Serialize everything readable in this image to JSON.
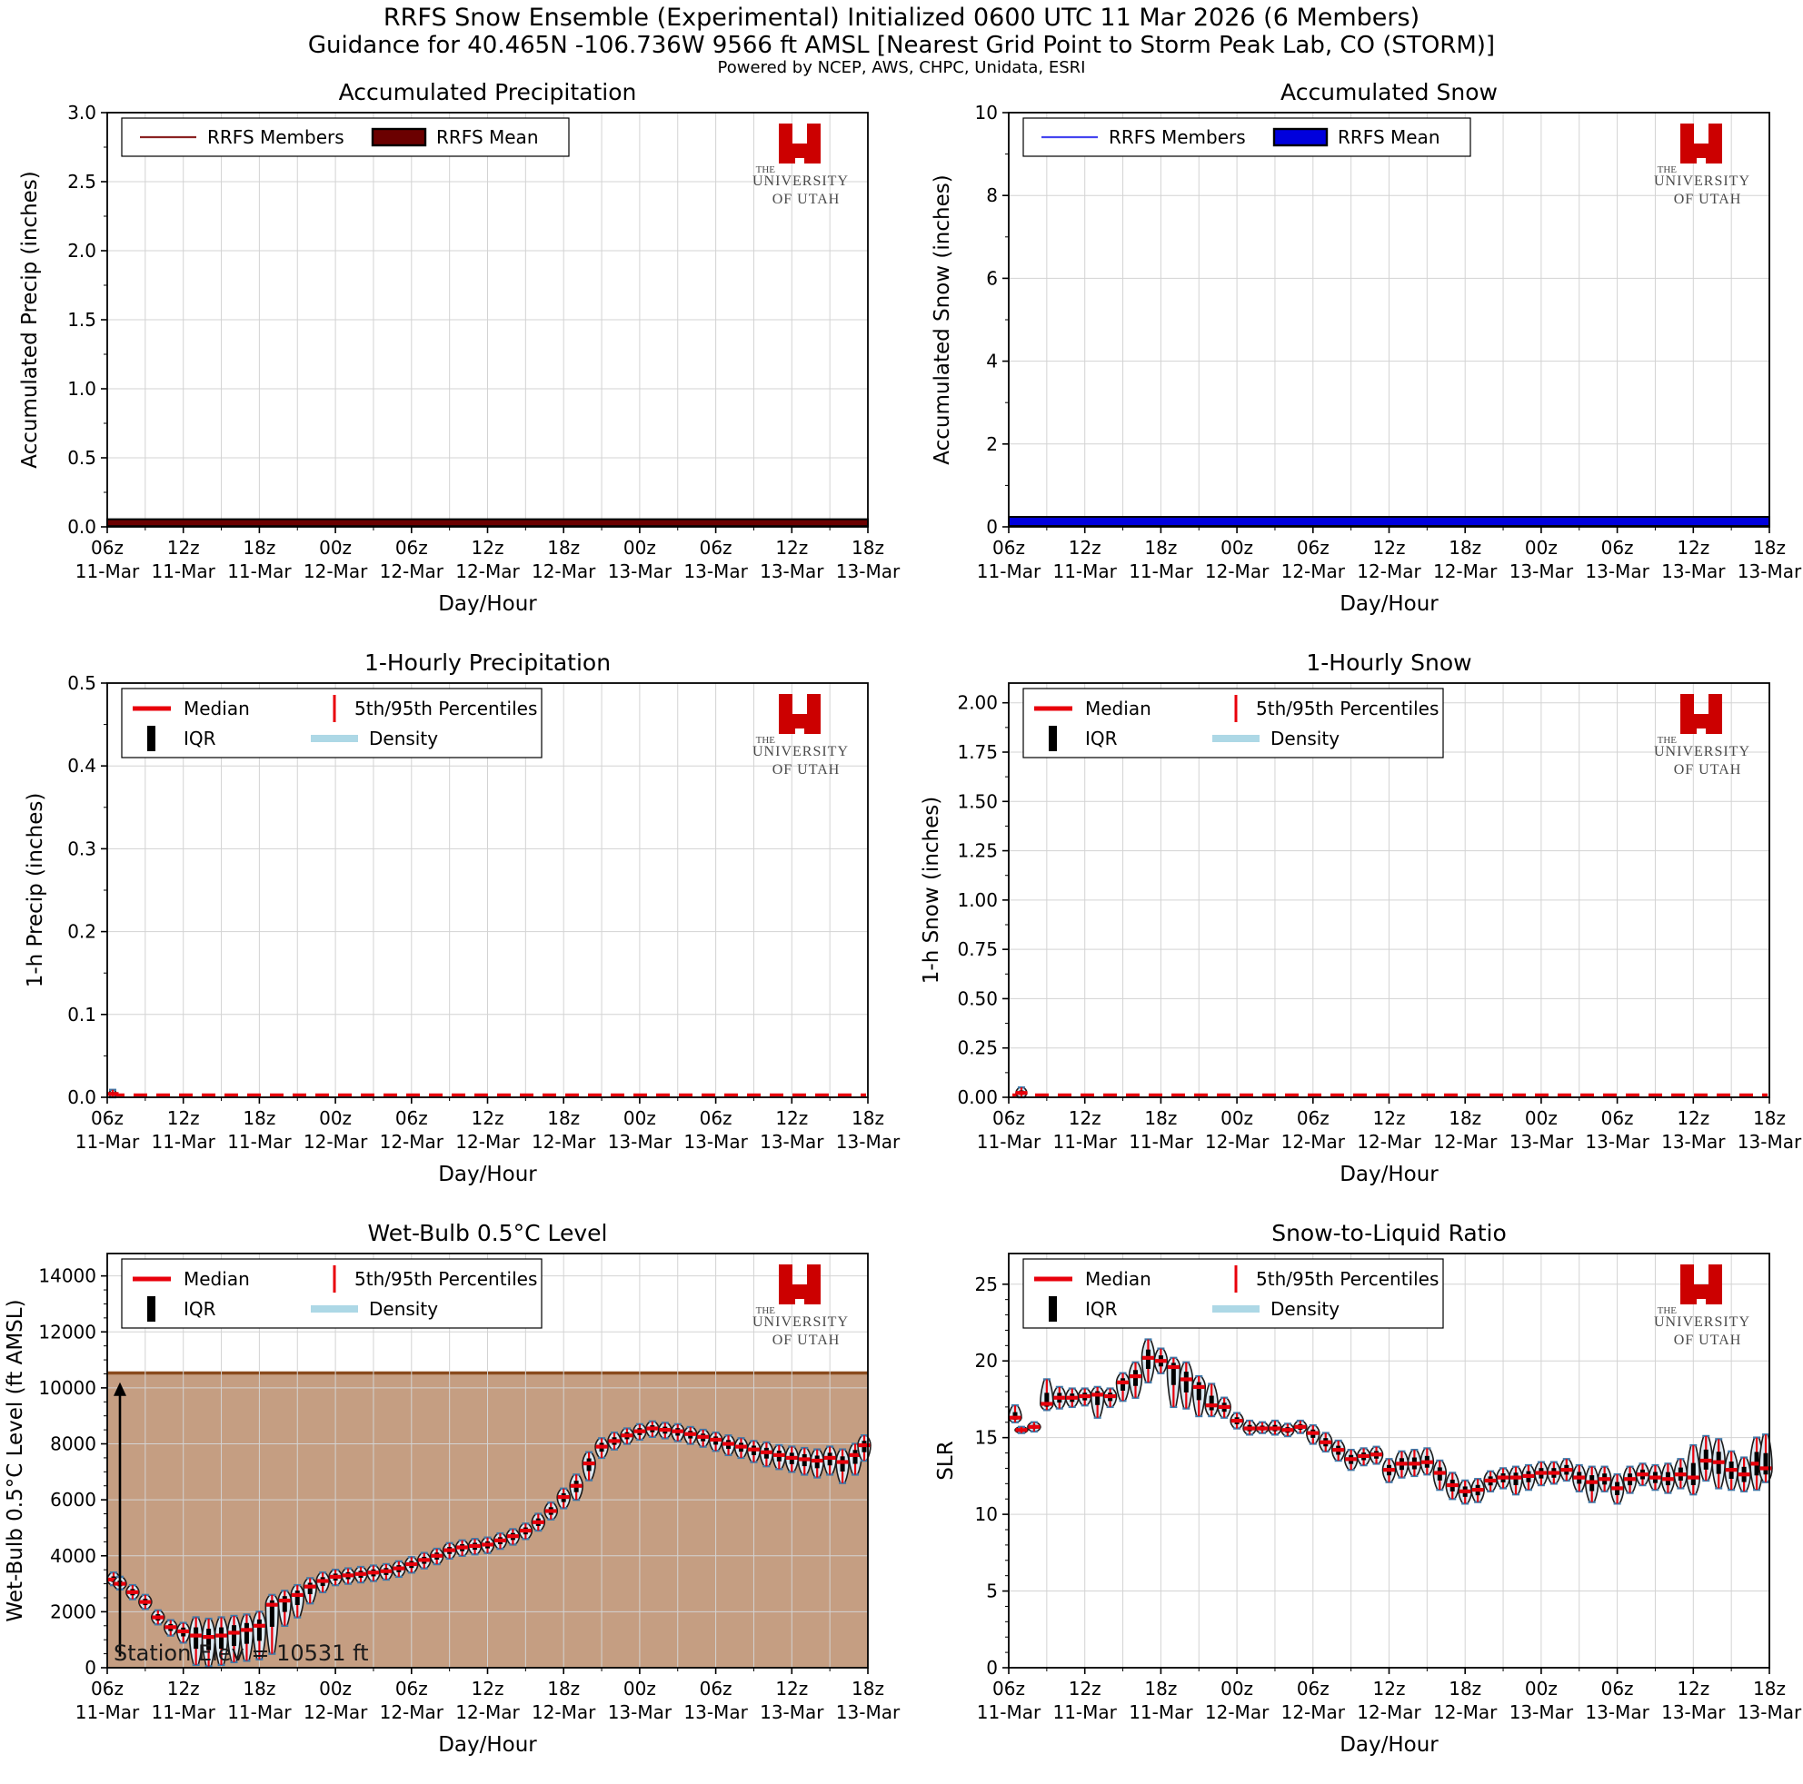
{
  "header": {
    "title": "RRFS Snow Ensemble (Experimental) Initialized 0600 UTC 11 Mar 2026 (6 Members)",
    "subtitle": "Guidance for 40.465N -106.736W 9566 ft AMSL [Nearest Grid Point to Storm Peak Lab, CO (STORM)]",
    "powered_by": "Powered by NCEP, AWS, CHPC, Unidata, ESRI"
  },
  "logo": {
    "brand_letter": "U",
    "line1": "THE",
    "line2": "UNIVERSITY",
    "line3": "OF UTAH"
  },
  "x_axis": {
    "label": "Day/Hour",
    "hours_total": 60,
    "major_every": 6,
    "minor_every": 3,
    "ticks": [
      {
        "z": "06z",
        "day": "11-Mar"
      },
      {
        "z": "12z",
        "day": "11-Mar"
      },
      {
        "z": "18z",
        "day": "11-Mar"
      },
      {
        "z": "00z",
        "day": "12-Mar"
      },
      {
        "z": "06z",
        "day": "12-Mar"
      },
      {
        "z": "12z",
        "day": "12-Mar"
      },
      {
        "z": "18z",
        "day": "12-Mar"
      },
      {
        "z": "00z",
        "day": "13-Mar"
      },
      {
        "z": "06z",
        "day": "13-Mar"
      },
      {
        "z": "12z",
        "day": "13-Mar"
      },
      {
        "z": "18z",
        "day": "13-Mar"
      }
    ]
  },
  "violin_legend": {
    "median": "Median",
    "percentiles": "5th/95th Percentiles",
    "iqr": "IQR",
    "density": "Density"
  },
  "colors": {
    "precip_member": "#8B2323",
    "precip_mean": "#6B0000",
    "snow_member": "#4545F0",
    "snow_mean": "#0000DD",
    "median_red": "#E8000B",
    "iqr_black": "#000000",
    "density_lightblue": "#ADD8E6",
    "violin_fill": "#DCEAF3",
    "violin_edge": "#1a1a1a",
    "cap_blue": "#4079A8",
    "terrain_fill": "#C59E82",
    "terrain_edge": "#8A4A1C",
    "grid": "#D3D3D3",
    "logo_red": "#CC0000",
    "logo_gray": "#4a4a4a"
  },
  "chart_data": [
    {
      "key": "accum_precip",
      "type": "accum",
      "title": "Accumulated Precipitation",
      "ylabel": "Accumulated Precip (inches)",
      "ylabel_x": 40,
      "ylim": [
        0,
        3.0
      ],
      "yticks": [
        0.0,
        0.5,
        1.0,
        1.5,
        2.0,
        2.5,
        3.0
      ],
      "ytick_decimals": 1,
      "y_minor_divs": 2,
      "legend": {
        "members_label": "RRFS Members",
        "mean_label": "RRFS Mean"
      },
      "member_color_key": "precip_member",
      "mean_color_key": "precip_mean",
      "members_value": 0.02,
      "mean_band": [
        0.005,
        0.055
      ],
      "grid_on": true,
      "legend_position": "upper-left"
    },
    {
      "key": "accum_snow",
      "type": "accum",
      "title": "Accumulated Snow",
      "ylabel": "Accumulated Snow (inches)",
      "ylabel_x": 52,
      "ylim": [
        0,
        10
      ],
      "yticks": [
        0,
        2,
        4,
        6,
        8,
        10
      ],
      "ytick_decimals": 0,
      "y_minor_divs": 2,
      "legend": {
        "members_label": "RRFS Members",
        "mean_label": "RRFS Mean"
      },
      "member_color_key": "snow_member",
      "mean_color_key": "snow_mean",
      "members_value": 0.1,
      "mean_band": [
        0.02,
        0.24
      ],
      "grid_on": true,
      "legend_position": "upper-left"
    },
    {
      "key": "hourly_precip",
      "type": "hourly",
      "title": "1-Hourly Precipitation",
      "ylabel": "1-h Precip (inches)",
      "ylabel_x": 46,
      "ylim": [
        0,
        0.5
      ],
      "yticks": [
        0.0,
        0.1,
        0.2,
        0.3,
        0.4,
        0.5
      ],
      "ytick_decimals": 1,
      "y_minor_divs": 2,
      "median_flat": 0.0,
      "violins": [
        {
          "h": 0,
          "med": 0.004,
          "p5": 0.0,
          "p95": 0.009,
          "w": 4
        }
      ],
      "grid_on": true,
      "legend_position": "upper-left"
    },
    {
      "key": "hourly_snow",
      "type": "hourly",
      "title": "1-Hourly Snow",
      "ylabel": "1-h Snow (inches)",
      "ylabel_x": 40,
      "ylim": [
        0,
        2.1
      ],
      "yticks": [
        0.0,
        0.25,
        0.5,
        0.75,
        1.0,
        1.25,
        1.5,
        1.75,
        2.0
      ],
      "ytick_decimals": 2,
      "y_minor_divs": 2,
      "median_flat": 0.0,
      "violins": [
        {
          "h": 1,
          "med": 0.022,
          "p5": 0.0,
          "p95": 0.05,
          "w": 6
        }
      ],
      "grid_on": true,
      "legend_position": "upper-left"
    },
    {
      "key": "wetbulb",
      "type": "violins",
      "title": "Wet-Bulb 0.5°C Level",
      "ylabel": "Wet-Bulb 0.5°C Level (ft AMSL)",
      "ylabel_x": 24,
      "ylim": [
        0,
        14800
      ],
      "yticks": [
        0,
        2000,
        4000,
        6000,
        8000,
        10000,
        12000,
        14000
      ],
      "ytick_decimals": 0,
      "y_minor_divs": 4,
      "station_elevation_ft": 10531,
      "annotation": "Station Elev = 10531 ft",
      "shade_below_station": true,
      "arrow_up": true,
      "median": [
        3150,
        3000,
        2700,
        2350,
        1800,
        1450,
        1300,
        1150,
        1100,
        1150,
        1250,
        1350,
        1500,
        2250,
        2400,
        2600,
        2900,
        3100,
        3250,
        3300,
        3350,
        3400,
        3450,
        3550,
        3700,
        3850,
        4000,
        4200,
        4300,
        4350,
        4400,
        4550,
        4700,
        4900,
        5200,
        5600,
        6100,
        6500,
        7300,
        7900,
        8100,
        8300,
        8450,
        8550,
        8500,
        8450,
        8350,
        8250,
        8150,
        8000,
        7900,
        7800,
        7700,
        7600,
        7500,
        7450,
        7400,
        7500,
        7350,
        7600,
        7950
      ],
      "p5": [
        2950,
        2800,
        2450,
        2100,
        1550,
        1150,
        900,
        100,
        50,
        100,
        200,
        250,
        300,
        500,
        1500,
        1800,
        2300,
        2700,
        2950,
        3000,
        3050,
        3100,
        3150,
        3250,
        3400,
        3550,
        3700,
        3900,
        4000,
        4050,
        4100,
        4250,
        4400,
        4600,
        4900,
        5300,
        5700,
        6000,
        6700,
        7500,
        7800,
        8000,
        8150,
        8250,
        8200,
        8100,
        8000,
        7900,
        7750,
        7600,
        7500,
        7350,
        7200,
        7100,
        7000,
        6900,
        6800,
        6900,
        6600,
        6900,
        7400
      ],
      "p95": [
        3400,
        3250,
        2950,
        2600,
        2050,
        1700,
        1600,
        1800,
        1750,
        1800,
        1850,
        1900,
        2000,
        2600,
        2750,
        2950,
        3200,
        3400,
        3500,
        3550,
        3600,
        3650,
        3700,
        3800,
        3950,
        4100,
        4250,
        4450,
        4550,
        4600,
        4650,
        4800,
        4950,
        5150,
        5500,
        5900,
        6400,
        6900,
        7700,
        8200,
        8400,
        8550,
        8700,
        8800,
        8750,
        8700,
        8600,
        8500,
        8400,
        8300,
        8200,
        8100,
        8050,
        7950,
        7900,
        7850,
        7800,
        7900,
        7800,
        8000,
        8300
      ],
      "grid_on": true,
      "legend_position": "upper-left"
    },
    {
      "key": "slr",
      "type": "violins",
      "title": "Snow-to-Liquid Ratio",
      "ylabel": "SLR",
      "ylabel_x": 56,
      "ylim": [
        0,
        27
      ],
      "yticks": [
        0,
        5,
        10,
        15,
        20,
        25
      ],
      "ytick_decimals": 0,
      "y_minor_divs": 5,
      "median": [
        16.3,
        15.5,
        15.7,
        17.2,
        17.6,
        17.6,
        17.7,
        17.8,
        17.7,
        18.6,
        19.0,
        20.2,
        20.0,
        19.6,
        18.8,
        18.3,
        17.1,
        17.0,
        16.1,
        15.6,
        15.6,
        15.6,
        15.5,
        15.7,
        15.3,
        14.7,
        14.2,
        13.6,
        13.8,
        13.9,
        12.9,
        13.3,
        13.3,
        13.4,
        12.7,
        11.9,
        11.5,
        11.6,
        12.2,
        12.4,
        12.4,
        12.5,
        12.7,
        12.7,
        12.9,
        12.4,
        12.1,
        12.3,
        11.7,
        12.3,
        12.6,
        12.4,
        12.3,
        12.6,
        12.4,
        13.5,
        13.4,
        12.9,
        12.6,
        13.3,
        13.0
      ],
      "p5": [
        16.0,
        15.3,
        15.4,
        16.8,
        16.9,
        17.0,
        17.1,
        16.3,
        17.0,
        17.4,
        17.6,
        18.6,
        19.2,
        17.0,
        16.9,
        16.4,
        16.4,
        16.3,
        15.6,
        15.2,
        15.3,
        15.2,
        15.1,
        15.3,
        14.6,
        14.1,
        13.5,
        12.9,
        13.2,
        13.3,
        12.1,
        12.4,
        12.5,
        12.6,
        11.6,
        11.0,
        10.7,
        10.8,
        11.5,
        11.7,
        11.3,
        11.6,
        11.9,
        12.0,
        12.2,
        11.5,
        10.8,
        11.5,
        10.7,
        11.4,
        11.9,
        11.6,
        11.4,
        11.7,
        11.3,
        12.2,
        11.7,
        11.6,
        11.5,
        11.6,
        12.1
      ],
      "p95": [
        17.1,
        15.7,
        16.0,
        18.8,
        18.3,
        18.2,
        18.2,
        18.3,
        18.2,
        19.2,
        19.9,
        21.4,
        20.8,
        20.2,
        19.9,
        19.0,
        18.5,
        17.6,
        16.6,
        16.1,
        16.0,
        16.1,
        15.9,
        16.1,
        15.8,
        15.3,
        14.8,
        14.2,
        14.3,
        14.4,
        13.6,
        14.1,
        14.2,
        14.3,
        13.5,
        12.7,
        12.2,
        12.3,
        12.8,
        13.0,
        13.1,
        13.2,
        13.4,
        13.4,
        13.6,
        13.2,
        13.1,
        13.1,
        12.6,
        13.1,
        13.3,
        13.2,
        13.3,
        13.6,
        14.5,
        15.1,
        14.9,
        14.1,
        13.7,
        15.0,
        15.2
      ],
      "grid_on": true,
      "legend_position": "upper-left"
    }
  ]
}
